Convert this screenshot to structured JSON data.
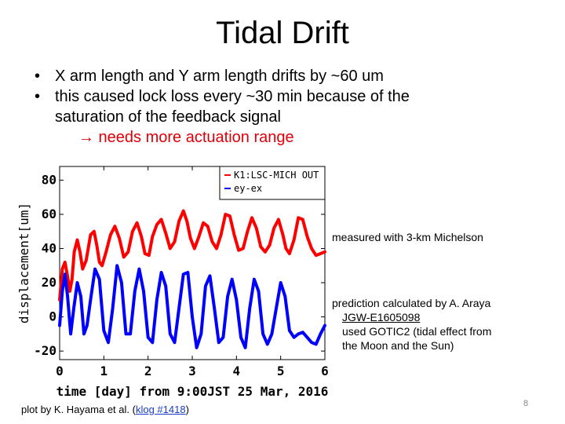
{
  "slide": {
    "title": "Tidal Drift",
    "bullets": [
      {
        "marker": "•",
        "text": "X arm length and Y arm length drifts by ~60 um"
      },
      {
        "marker": "•",
        "text": "this caused lock loss every ~30 min because of the",
        "continuation": "saturation of the feedback signal"
      }
    ],
    "arrow_line": "→ needs more actuation range",
    "note_measured": "measured with 3-km Michelson",
    "note_prediction": {
      "line1": "prediction calculated by A. Araya",
      "doc": "JGW-E1605098",
      "line3": "used GOTIC2 (tidal effect from",
      "line4": "the Moon and the Sun)"
    },
    "footer": {
      "prefix": "plot by K. Hayama et al. (",
      "link": "klog #1418",
      "suffix": ")"
    },
    "page_number": "8"
  },
  "chart_data": {
    "type": "line",
    "xlabel": "time [day] from 9:00JST 25 Mar, 2016",
    "ylabel": "displacement[um]",
    "xlim": [
      0,
      6
    ],
    "ylim": [
      -25,
      88
    ],
    "xticks": [
      "0",
      "1",
      "2",
      "3",
      "4",
      "5",
      "6"
    ],
    "yticks": [
      "-20",
      "0",
      "20",
      "40",
      "60",
      "80"
    ],
    "grid": false,
    "legend_position": "top-right",
    "series": [
      {
        "name": "K1:LSC-MICH OUT",
        "color": "#ff0000",
        "x": [
          0,
          0.06,
          0.12,
          0.17,
          0.23,
          0.28,
          0.33,
          0.4,
          0.46,
          0.52,
          0.6,
          0.7,
          0.78,
          0.84,
          0.9,
          0.96,
          1.05,
          1.15,
          1.25,
          1.35,
          1.45,
          1.55,
          1.65,
          1.75,
          1.85,
          1.93,
          2.02,
          2.1,
          2.2,
          2.3,
          2.4,
          2.5,
          2.6,
          2.7,
          2.8,
          2.88,
          2.96,
          3.05,
          3.15,
          3.25,
          3.35,
          3.45,
          3.55,
          3.65,
          3.75,
          3.85,
          3.95,
          4.05,
          4.15,
          4.25,
          4.35,
          4.45,
          4.55,
          4.65,
          4.75,
          4.85,
          4.95,
          5.05,
          5.12,
          5.2,
          5.3,
          5.4,
          5.5,
          5.6,
          5.7,
          5.8,
          5.9,
          6.0
        ],
        "y": [
          10,
          28,
          32,
          25,
          15,
          22,
          38,
          45,
          38,
          28,
          33,
          48,
          50,
          42,
          32,
          30,
          38,
          48,
          53,
          46,
          35,
          38,
          50,
          55,
          47,
          37,
          36,
          47,
          54,
          57,
          49,
          40,
          44,
          56,
          62,
          56,
          46,
          40,
          47,
          55,
          53,
          44,
          40,
          48,
          60,
          59,
          48,
          39,
          40,
          50,
          58,
          52,
          41,
          38,
          42,
          52,
          57,
          48,
          40,
          37,
          45,
          58,
          57,
          47,
          40,
          36,
          37,
          38
        ]
      },
      {
        "name": "ey-ex",
        "color": "#0000ff",
        "x": [
          0,
          0.06,
          0.12,
          0.18,
          0.25,
          0.32,
          0.4,
          0.48,
          0.55,
          0.62,
          0.7,
          0.8,
          0.9,
          1.0,
          1.1,
          1.2,
          1.3,
          1.4,
          1.5,
          1.6,
          1.7,
          1.8,
          1.9,
          2.0,
          2.1,
          2.2,
          2.3,
          2.4,
          2.5,
          2.6,
          2.7,
          2.8,
          2.9,
          3.0,
          3.1,
          3.2,
          3.3,
          3.4,
          3.5,
          3.6,
          3.7,
          3.8,
          3.9,
          4.0,
          4.1,
          4.2,
          4.3,
          4.4,
          4.5,
          4.6,
          4.7,
          4.8,
          4.9,
          5.0,
          5.1,
          5.2,
          5.3,
          5.4,
          5.5,
          5.6,
          5.7,
          5.8,
          5.9,
          6.0
        ],
        "y": [
          -5,
          15,
          25,
          12,
          -10,
          5,
          20,
          12,
          -10,
          -5,
          10,
          28,
          22,
          -8,
          -15,
          5,
          30,
          20,
          -10,
          -10,
          15,
          28,
          15,
          -12,
          -15,
          10,
          26,
          18,
          -10,
          -15,
          5,
          25,
          26,
          0,
          -18,
          -10,
          18,
          24,
          5,
          -15,
          -12,
          12,
          22,
          10,
          -12,
          -18,
          5,
          22,
          15,
          -10,
          -16,
          -10,
          5,
          20,
          12,
          -8,
          -12,
          -10,
          -9,
          -12,
          -15,
          -16,
          -10,
          -5
        ]
      }
    ]
  }
}
